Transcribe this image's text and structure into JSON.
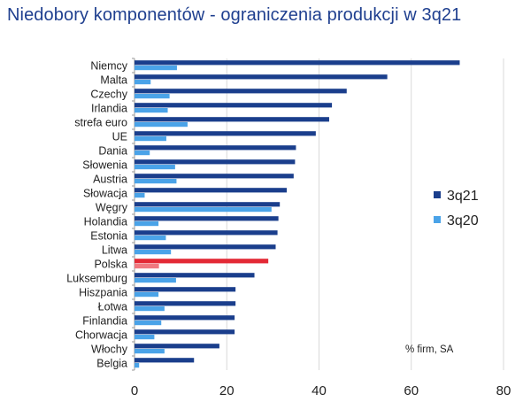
{
  "chart_data": {
    "type": "bar",
    "orientation": "horizontal",
    "title": "Niedobory komponentów - ograniczenia produkcji w 3q21",
    "annotation": "% firm, SA",
    "categories": [
      "Niemcy",
      "Malta",
      "Czechy",
      "Irlandia",
      "strefa euro",
      "UE",
      "Dania",
      "Słowenia",
      "Austria",
      "Słowacja",
      "Węgry",
      "Holandia",
      "Estonia",
      "Litwa",
      "Polska",
      "Luksemburg",
      "Hiszpania",
      "Łotwa",
      "Finlandia",
      "Chorwacja",
      "Włochy",
      "Belgia"
    ],
    "series": [
      {
        "name": "3q21",
        "color": "#1a3e8c",
        "values": [
          70.5,
          54.8,
          46.0,
          42.8,
          42.2,
          39.3,
          35.0,
          34.8,
          34.5,
          33.0,
          31.5,
          31.2,
          31.0,
          30.6,
          29.0,
          26.0,
          21.9,
          21.9,
          21.7,
          21.7,
          18.4,
          12.9
        ]
      },
      {
        "name": "3q20",
        "color": "#4aa3e8",
        "values": [
          9.2,
          3.5,
          7.6,
          7.2,
          11.5,
          6.9,
          3.3,
          8.8,
          9.1,
          2.2,
          29.7,
          5.2,
          6.8,
          7.9,
          5.3,
          9.0,
          5.2,
          6.5,
          5.8,
          4.3,
          6.5,
          1.0
        ]
      }
    ],
    "highlight": {
      "category": "Polska",
      "colors": {
        "3q21": "#e32935",
        "3q20": "#f0787f"
      }
    },
    "xlim": [
      0,
      80
    ],
    "xticks": [
      "0",
      "20",
      "40",
      "60",
      "80"
    ],
    "grid": "vertical",
    "gridline_color": "#d9d9d9",
    "legend_position": "right"
  }
}
